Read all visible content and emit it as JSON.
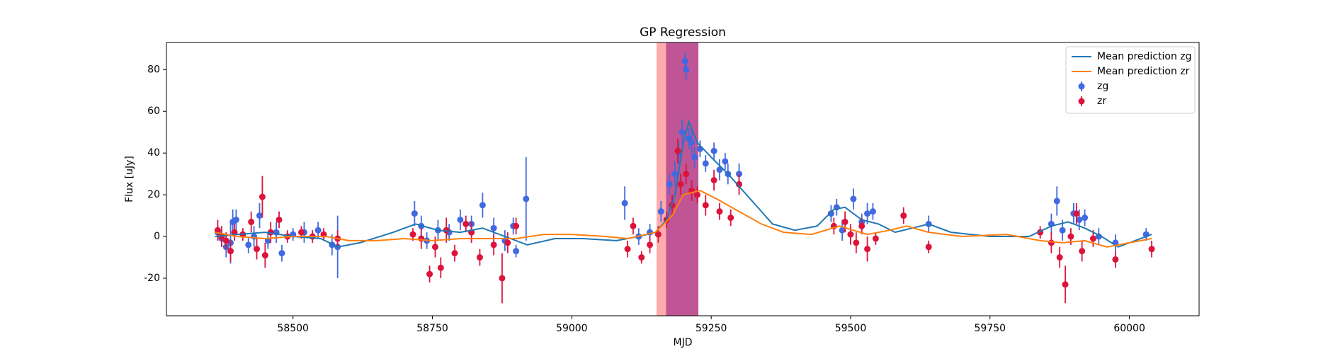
{
  "chart_data": {
    "type": "scatter",
    "title": "GP Regression",
    "x_label": "MJD",
    "y_label": "Flux [uJy]",
    "xlim": [
      58273,
      60125
    ],
    "ylim": [
      -38,
      93
    ],
    "xticks": [
      58500,
      58750,
      59000,
      59250,
      59500,
      59750,
      60000
    ],
    "yticks": [
      -20,
      0,
      20,
      40,
      60,
      80
    ],
    "legend": "upper right",
    "spans": [
      {
        "start": 59152,
        "end": 59227,
        "color": "#ff0000",
        "alpha": 0.33
      },
      {
        "start": 59169,
        "end": 59227,
        "color": "#800080",
        "alpha": 0.5
      }
    ],
    "lines": [
      {
        "name": "Mean prediction zg",
        "color": "#1f77b4",
        "x": [
          58360,
          58400,
          58450,
          58500,
          58550,
          58580,
          58620,
          58680,
          58720,
          58760,
          58800,
          58840,
          58880,
          58920,
          58970,
          59020,
          59080,
          59120,
          59150,
          59170,
          59185,
          59200,
          59210,
          59225,
          59250,
          59280,
          59320,
          59360,
          59400,
          59440,
          59470,
          59490,
          59520,
          59550,
          59580,
          59610,
          59640,
          59680,
          59750,
          59820,
          59860,
          59890,
          59920,
          59950,
          59980,
          60010,
          60040
        ],
        "y": [
          0,
          1,
          2,
          0,
          -1,
          -5,
          -3,
          2,
          6,
          3,
          2,
          4,
          0,
          -4,
          -1,
          -1,
          -2,
          0,
          2,
          8,
          20,
          45,
          55,
          45,
          38,
          30,
          18,
          6,
          3,
          5,
          13,
          14,
          8,
          6,
          2,
          4,
          6,
          2,
          0,
          0,
          5,
          7,
          4,
          0,
          -5,
          -2,
          1
        ]
      },
      {
        "name": "Mean prediction zr",
        "color": "#ff7f0e",
        "x": [
          58360,
          58400,
          58450,
          58500,
          58560,
          58600,
          58650,
          58700,
          58750,
          58800,
          58850,
          58900,
          58950,
          59000,
          59060,
          59100,
          59150,
          59180,
          59200,
          59230,
          59260,
          59300,
          59340,
          59380,
          59430,
          59480,
          59530,
          59570,
          59600,
          59640,
          59700,
          59780,
          59840,
          59880,
          59920,
          59960,
          60000,
          60040
        ],
        "y": [
          2,
          0,
          -1,
          0,
          0,
          -2,
          -2,
          -1,
          -2,
          -1,
          -1,
          -1,
          1,
          1,
          0,
          -1,
          2,
          10,
          20,
          22,
          18,
          12,
          6,
          2,
          1,
          5,
          1,
          3,
          5,
          2,
          0,
          1,
          -2,
          -3,
          -2,
          -5,
          -3,
          -1
        ]
      }
    ],
    "series": [
      {
        "name": "zg",
        "color": "#4169e1",
        "x": [
          58365,
          58372,
          58380,
          58388,
          58392,
          58398,
          58420,
          58430,
          58440,
          58455,
          58470,
          58480,
          58500,
          58520,
          58545,
          58570,
          58580,
          58718,
          58730,
          58740,
          58760,
          58780,
          58800,
          58820,
          58840,
          58860,
          58880,
          58895,
          58900,
          58918,
          59095,
          59120,
          59140,
          59160,
          59175,
          59185,
          59192,
          59198,
          59203,
          59205,
          59210,
          59215,
          59220,
          59230,
          59240,
          59255,
          59265,
          59275,
          59280,
          59300,
          59465,
          59475,
          59485,
          59505,
          59520,
          59530,
          59540,
          59640,
          59860,
          59870,
          59880,
          59900,
          59910,
          59920,
          59945,
          59975,
          60030
        ],
        "values": [
          2,
          -1,
          -5,
          -3,
          7,
          8,
          -4,
          0,
          10,
          -2,
          2,
          -8,
          1,
          2,
          3,
          -4,
          -5,
          11,
          5,
          -2,
          3,
          2,
          8,
          6,
          15,
          4,
          -2,
          5,
          -7,
          18,
          16,
          0,
          2,
          12,
          25,
          30,
          40,
          50,
          84,
          80,
          47,
          45,
          38,
          42,
          35,
          41,
          32,
          36,
          30,
          30,
          11,
          14,
          3,
          18,
          7,
          11,
          12,
          6,
          6,
          17,
          3,
          11,
          8,
          9,
          0,
          -3,
          1
        ],
        "errors": [
          3,
          4,
          5,
          10,
          6,
          5,
          4,
          5,
          6,
          4,
          5,
          4,
          3,
          5,
          4,
          5,
          15,
          6,
          5,
          4,
          5,
          4,
          5,
          4,
          6,
          5,
          5,
          4,
          3,
          20,
          8,
          4,
          4,
          5,
          5,
          6,
          5,
          6,
          4,
          5,
          5,
          6,
          5,
          4,
          4,
          4,
          5,
          4,
          5,
          5,
          4,
          4,
          5,
          5,
          4,
          5,
          4,
          4,
          5,
          7,
          5,
          5,
          5,
          4,
          4,
          4,
          3
        ]
      },
      {
        "name": "zr",
        "color": "#dc143c",
        "x": [
          58365,
          58372,
          58380,
          58388,
          58395,
          58410,
          58425,
          58435,
          58445,
          58450,
          58460,
          58475,
          58490,
          58515,
          58535,
          58555,
          58580,
          58715,
          58730,
          58745,
          58755,
          58765,
          58775,
          58790,
          58810,
          58820,
          58835,
          58860,
          58875,
          58885,
          58900,
          59100,
          59110,
          59125,
          59140,
          59155,
          59170,
          59180,
          59190,
          59195,
          59205,
          59215,
          59225,
          59240,
          59255,
          59265,
          59285,
          59300,
          59470,
          59490,
          59500,
          59510,
          59520,
          59530,
          59545,
          59595,
          59640,
          59840,
          59860,
          59875,
          59885,
          59895,
          59905,
          59915,
          59935,
          59975,
          60040
        ],
        "values": [
          3,
          0,
          -2,
          -7,
          2,
          1,
          7,
          -6,
          19,
          -9,
          2,
          8,
          0,
          2,
          0,
          1,
          -1,
          1,
          -1,
          -18,
          -5,
          -15,
          3,
          -8,
          6,
          2,
          -10,
          -4,
          -20,
          -3,
          5,
          -6,
          5,
          -10,
          -4,
          1,
          8,
          15,
          41,
          25,
          30,
          22,
          20,
          15,
          27,
          12,
          9,
          25,
          5,
          7,
          1,
          -3,
          5,
          -6,
          -1,
          10,
          -5,
          2,
          -3,
          -10,
          -23,
          0,
          11,
          -7,
          -1,
          -11,
          -6
        ],
        "errors": [
          5,
          5,
          4,
          5,
          4,
          3,
          5,
          5,
          10,
          6,
          5,
          4,
          3,
          3,
          3,
          3,
          4,
          3,
          5,
          4,
          5,
          5,
          6,
          4,
          4,
          5,
          4,
          5,
          12,
          5,
          4,
          4,
          4,
          3,
          4,
          4,
          4,
          5,
          6,
          5,
          5,
          5,
          4,
          5,
          5,
          4,
          4,
          5,
          4,
          5,
          5,
          5,
          4,
          6,
          3,
          4,
          3,
          3,
          5,
          5,
          9,
          4,
          5,
          5,
          4,
          4,
          4
        ]
      }
    ]
  }
}
